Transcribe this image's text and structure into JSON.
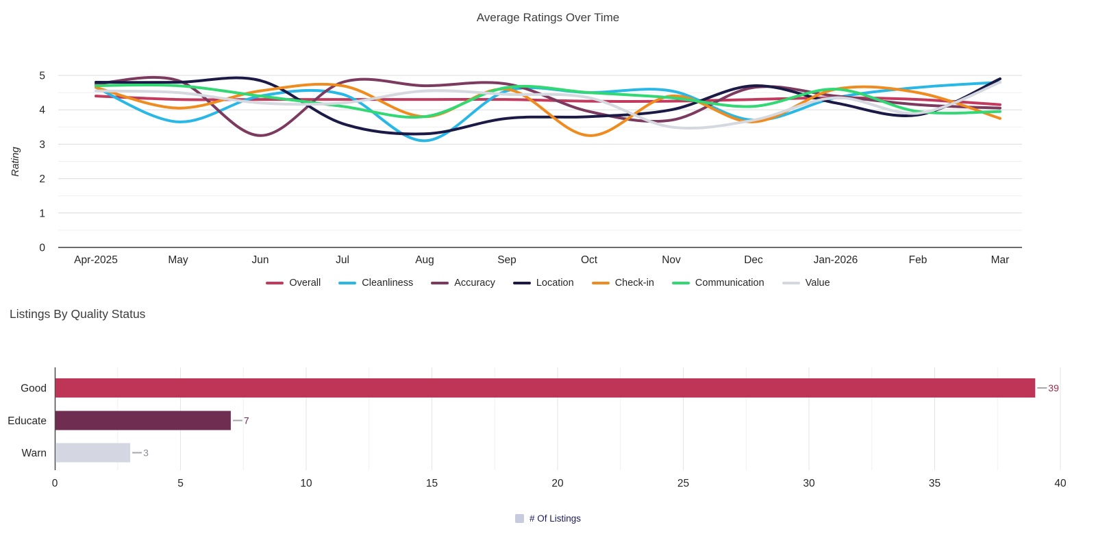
{
  "page": {
    "background": "#ffffff"
  },
  "chart_data": [
    {
      "type": "line",
      "title": "Average Ratings Over Time",
      "xlabel": "",
      "ylabel": "Rating",
      "ylim": [
        0,
        5
      ],
      "y_ticks": [
        0,
        1,
        2,
        3,
        4,
        5
      ],
      "grid": true,
      "legend_position": "bottom",
      "categories": [
        "Apr-2025",
        "May",
        "Jun",
        "Jul",
        "Aug",
        "Sep",
        "Oct",
        "Nov",
        "Dec",
        "Jan-2026",
        "Feb",
        "Mar"
      ],
      "series": [
        {
          "name": "Overall",
          "color": "#C23B5E",
          "values": [
            4.4,
            4.3,
            4.3,
            4.3,
            4.3,
            4.3,
            4.25,
            4.25,
            4.3,
            4.35,
            4.3,
            4.15
          ]
        },
        {
          "name": "Cleanliness",
          "color": "#29B8E6",
          "values": [
            4.65,
            3.65,
            4.4,
            4.45,
            3.1,
            4.55,
            4.5,
            4.55,
            3.7,
            4.35,
            4.65,
            4.8
          ]
        },
        {
          "name": "Accuracy",
          "color": "#7C3A5F",
          "values": [
            4.75,
            4.85,
            3.25,
            4.8,
            4.7,
            4.75,
            3.95,
            3.7,
            4.65,
            4.4,
            4.15,
            4.05
          ]
        },
        {
          "name": "Location",
          "color": "#1B1A47",
          "values": [
            4.8,
            4.8,
            4.85,
            3.6,
            3.3,
            3.75,
            3.8,
            4.0,
            4.7,
            4.2,
            3.85,
            4.9
          ]
        },
        {
          "name": "Check-in",
          "color": "#EF8C1F",
          "values": [
            4.65,
            4.05,
            4.55,
            4.7,
            3.8,
            4.6,
            3.25,
            4.4,
            3.65,
            4.6,
            4.5,
            3.75
          ]
        },
        {
          "name": "Communication",
          "color": "#31D873",
          "values": [
            4.7,
            4.7,
            4.4,
            4.1,
            3.8,
            4.65,
            4.5,
            4.35,
            4.1,
            4.6,
            3.95,
            3.95
          ]
        },
        {
          "name": "Value",
          "color": "#D6D8E0",
          "values": [
            4.55,
            4.5,
            4.2,
            4.2,
            4.55,
            4.45,
            4.35,
            3.5,
            3.7,
            4.35,
            3.9,
            4.8
          ]
        }
      ]
    },
    {
      "type": "bar",
      "orientation": "horizontal",
      "title": "Listings By Quality Status",
      "categories": [
        "Good",
        "Educate",
        "Warn"
      ],
      "values": [
        39,
        7,
        3
      ],
      "bar_colors": [
        "#BE3557",
        "#6F2D52",
        "#D4D6E1"
      ],
      "value_label_colors": [
        "#9B2949",
        "#6F2D52",
        "#8B8B95"
      ],
      "xlim": [
        0,
        40
      ],
      "x_ticks": [
        0,
        5,
        10,
        15,
        20,
        25,
        30,
        35,
        40
      ],
      "grid": true,
      "legend": [
        {
          "label": "# Of Listings",
          "color": "#C8CADD"
        }
      ]
    }
  ]
}
